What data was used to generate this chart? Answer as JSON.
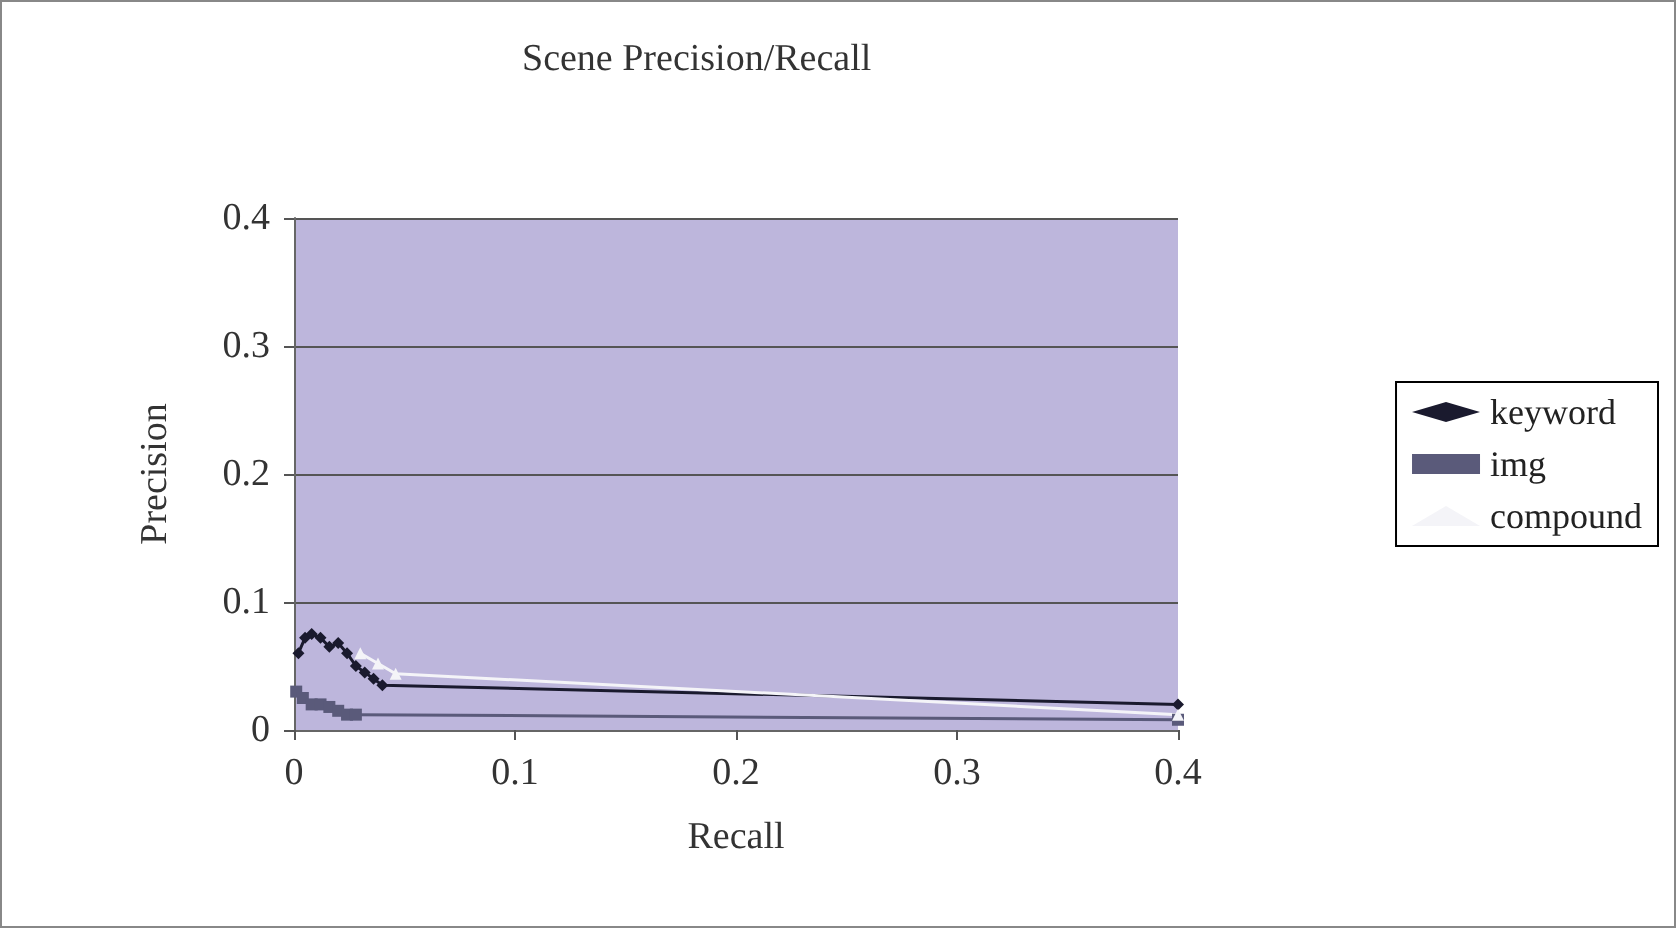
{
  "chart_data": {
    "type": "line",
    "title": "Scene Precision/Recall",
    "xlabel": "Recall",
    "ylabel": "Precision",
    "xlim": [
      0,
      0.4
    ],
    "xticks": [
      0,
      0.1,
      0.2,
      0.3,
      0.4
    ],
    "ylim": [
      0,
      0.4
    ],
    "yticks": [
      0,
      0.1,
      0.2,
      0.3,
      0.4
    ],
    "grid": "y",
    "legend": "right",
    "series": [
      {
        "name": "keyword",
        "color": "#1a1a2e",
        "marker": "diamond",
        "x": [
          0.002,
          0.005,
          0.008,
          0.012,
          0.016,
          0.02,
          0.024,
          0.028,
          0.032,
          0.036,
          0.04,
          0.4
        ],
        "values": [
          0.06,
          0.072,
          0.075,
          0.072,
          0.065,
          0.068,
          0.06,
          0.05,
          0.045,
          0.04,
          0.035,
          0.02
        ]
      },
      {
        "name": "img",
        "color": "#5a5a7a",
        "marker": "square",
        "x": [
          0.001,
          0.004,
          0.008,
          0.012,
          0.016,
          0.02,
          0.024,
          0.028,
          0.4
        ],
        "values": [
          0.03,
          0.025,
          0.02,
          0.02,
          0.018,
          0.015,
          0.012,
          0.012,
          0.008
        ]
      },
      {
        "name": "compound",
        "color": "#f4f4f8",
        "marker": "triangle",
        "x": [
          0.03,
          0.038,
          0.046,
          0.4
        ],
        "values": [
          0.06,
          0.052,
          0.044,
          0.012
        ]
      }
    ]
  }
}
